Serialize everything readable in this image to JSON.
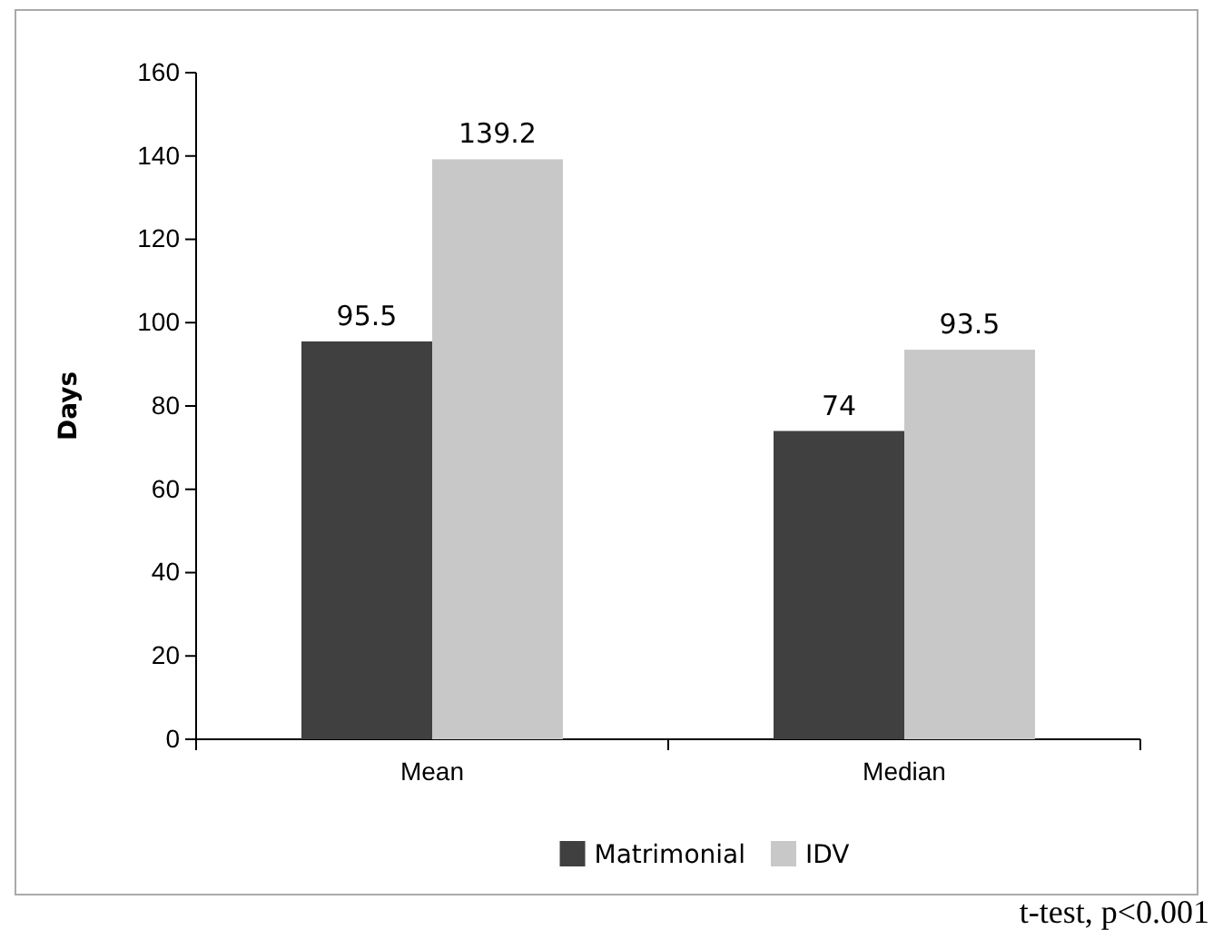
{
  "chart_data": {
    "type": "bar",
    "ylabel": "Days",
    "categories": [
      "Mean",
      "Median"
    ],
    "series": [
      {
        "name": "Matrimonial",
        "color": "#404040",
        "values": [
          95.5,
          74
        ]
      },
      {
        "name": "IDV",
        "color": "#c8c8c8",
        "values": [
          139.2,
          93.5
        ]
      }
    ],
    "ylim": [
      0,
      160
    ],
    "yticks": [
      0,
      20,
      40,
      60,
      80,
      100,
      120,
      140,
      160
    ],
    "grid": false,
    "legend": "bottom",
    "data_labels": true,
    "annotations": [
      "t-test, p<0.001"
    ]
  }
}
